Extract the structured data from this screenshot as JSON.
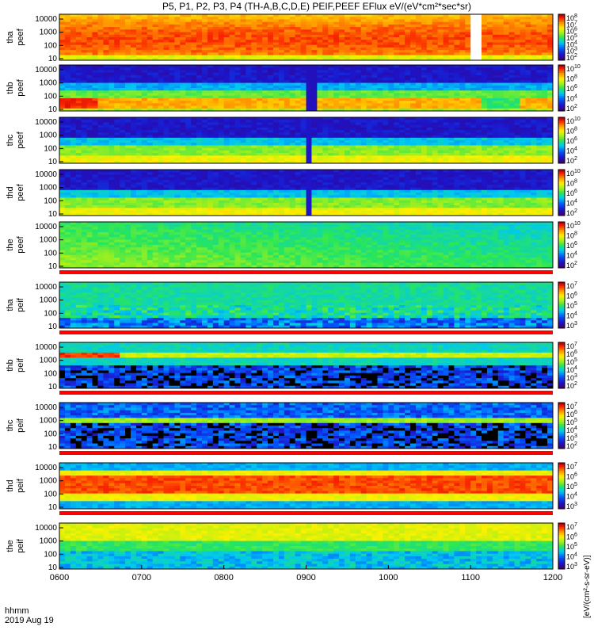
{
  "chart_data": {
    "type": "heatmap",
    "title": "P5, P1, P2, P3, P4 (TH-A,B,C,D,E) PEIF,PEEF EFlux eV/(eV*cm²*sec*sr)",
    "x_ticks": [
      "0600",
      "0700",
      "0800",
      "0900",
      "1000",
      "1100",
      "1200"
    ],
    "x_range": [
      "0600",
      "1200"
    ],
    "x_caption": [
      "hhmm",
      "2019 Aug 19"
    ],
    "y_scale": "log",
    "y_ticks": [
      "10",
      "100",
      "1000",
      "10000"
    ],
    "colorbar_label": "[eV/(cm²-s-sr-eV)]",
    "panels": [
      {
        "probe": "tha",
        "product": "peef",
        "cbar_exp": [
          2,
          3,
          4,
          5,
          6,
          7,
          8
        ],
        "palette": "hot",
        "gap": [
          1100,
          1108
        ]
      },
      {
        "probe": "thb",
        "product": "peef",
        "cbar_exp": [
          2,
          4,
          6,
          8,
          10
        ],
        "palette": "bandA"
      },
      {
        "probe": "thc",
        "product": "peef",
        "cbar_exp": [
          2,
          4,
          6,
          8,
          10
        ],
        "palette": "bandB"
      },
      {
        "probe": "thd",
        "product": "peef",
        "cbar_exp": [
          2,
          4,
          6,
          8,
          10
        ],
        "palette": "bandB"
      },
      {
        "probe": "the",
        "product": "peef",
        "cbar_exp": [
          2,
          4,
          6,
          8,
          10
        ],
        "palette": "green"
      },
      {
        "probe": "tha",
        "product": "peif",
        "cbar_exp": [
          3,
          4,
          5,
          6,
          7
        ],
        "palette": "lowBlue"
      },
      {
        "probe": "thb",
        "product": "peif",
        "cbar_exp": [
          2,
          3,
          4,
          5,
          6,
          7
        ],
        "palette": "noisy"
      },
      {
        "probe": "thc",
        "product": "peif",
        "cbar_exp": [
          2,
          3,
          4,
          5,
          6,
          7
        ],
        "palette": "noisy2"
      },
      {
        "probe": "thd",
        "product": "peif",
        "cbar_exp": [
          3,
          4,
          5,
          6,
          7
        ],
        "palette": "redCore"
      },
      {
        "probe": "the",
        "product": "peif",
        "cbar_exp": [
          3,
          4,
          5,
          6,
          7
        ],
        "palette": "green2"
      }
    ]
  }
}
